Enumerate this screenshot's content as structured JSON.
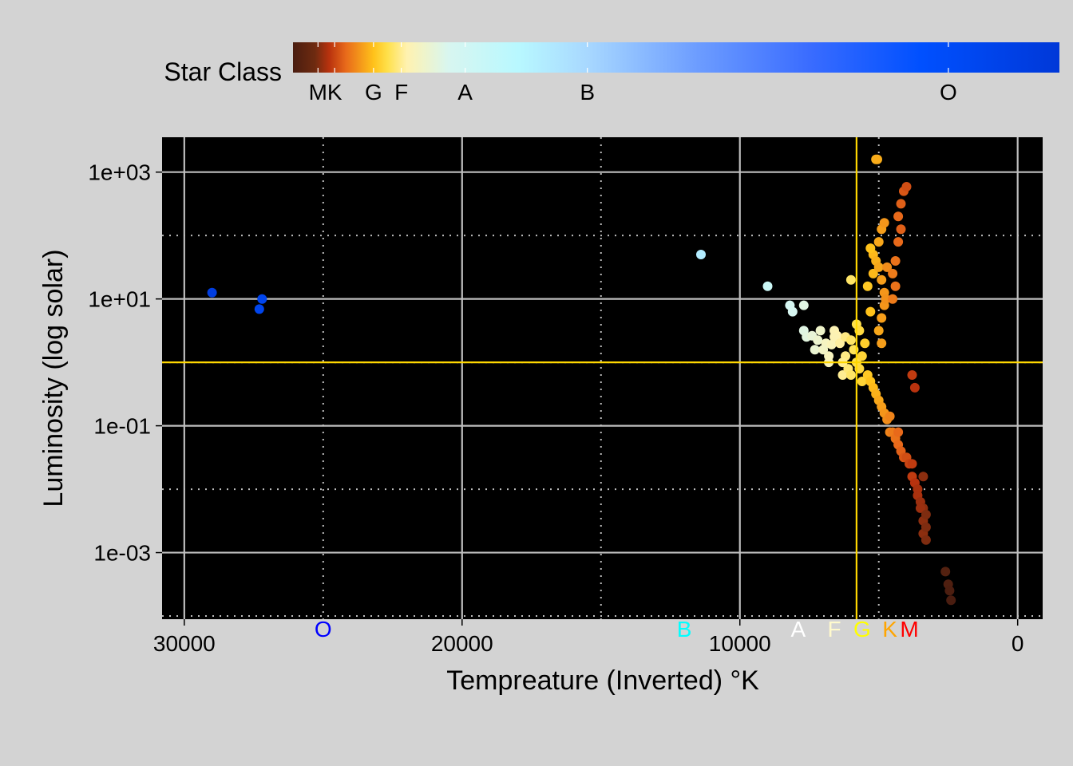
{
  "chart_data": {
    "type": "scatter",
    "title": "",
    "xlabel": "Tempreature (Inverted) °K",
    "ylabel": "Luminosity (log solar)",
    "x_axis": {
      "inverted": true,
      "range": [
        30800,
        -900
      ],
      "ticks": [
        30000,
        20000,
        10000,
        0
      ],
      "tick_labels": [
        "30000",
        "20000",
        "10000",
        "0"
      ]
    },
    "y_axis": {
      "log": true,
      "range_log10": [
        -4.05,
        3.55
      ],
      "ticks_log10": [
        3,
        1,
        -1,
        -3
      ],
      "tick_labels": [
        "1e+03",
        "1e+01",
        "1e-01",
        "1e-03"
      ]
    },
    "grid": true,
    "class_boundaries_x": [
      25000,
      15000,
      5000
    ],
    "class_boundaries_y_log10": [
      2,
      0,
      -2,
      -4
    ],
    "sun_reference": {
      "x": 5800,
      "y": 1,
      "color": "#ffd700"
    },
    "legend": {
      "title": "Star Class",
      "placement": "top",
      "colorbar_range": [
        2400,
        30000
      ],
      "gradient": [
        {
          "t": 2400,
          "color": "#4a1d10"
        },
        {
          "t": 3200,
          "color": "#6f2b10"
        },
        {
          "t": 3700,
          "color": "#b8320e"
        },
        {
          "t": 4300,
          "color": "#e8691a"
        },
        {
          "t": 5300,
          "color": "#ffc21a"
        },
        {
          "t": 5800,
          "color": "#ffe04a"
        },
        {
          "t": 6500,
          "color": "#fff2b0"
        },
        {
          "t": 8000,
          "color": "#d8f6f0"
        },
        {
          "t": 10500,
          "color": "#b8f8ff"
        },
        {
          "t": 13000,
          "color": "#a8d8ff"
        },
        {
          "t": 17000,
          "color": "#6c9cff"
        },
        {
          "t": 21000,
          "color": "#3a6cff"
        },
        {
          "t": 25000,
          "color": "#0050ff"
        },
        {
          "t": 30000,
          "color": "#0038d8"
        }
      ],
      "ticks": [
        {
          "label": "M",
          "t": 3300
        },
        {
          "label": "K",
          "t": 3900
        },
        {
          "label": "G",
          "t": 5300
        },
        {
          "label": "F",
          "t": 6300
        },
        {
          "label": "A",
          "t": 8600
        },
        {
          "label": "B",
          "t": 13000
        },
        {
          "label": "O",
          "t": 26000
        }
      ]
    },
    "class_labels": [
      {
        "label": "O",
        "x": 25000,
        "color": "#0000ff"
      },
      {
        "label": "B",
        "x": 12000,
        "color": "#00ffff"
      },
      {
        "label": "A",
        "x": 7900,
        "color": "#ffffff"
      },
      {
        "label": "F",
        "x": 6600,
        "color": "#fffacd"
      },
      {
        "label": "G",
        "x": 5600,
        "color": "#ffff00"
      },
      {
        "label": "K",
        "x": 4600,
        "color": "#ffa500"
      },
      {
        "label": "M",
        "x": 3900,
        "color": "#ff0000"
      }
    ],
    "series": [
      {
        "points": [
          [
            29000,
            1.1
          ],
          [
            27300,
            0.84
          ],
          [
            27200,
            1.0
          ],
          [
            11400,
            1.7
          ],
          [
            9000,
            1.2
          ],
          [
            8200,
            0.9
          ],
          [
            8100,
            0.8
          ],
          [
            7700,
            0.9
          ],
          [
            7700,
            0.5
          ],
          [
            7600,
            0.4
          ],
          [
            7400,
            0.42
          ],
          [
            7200,
            0.35
          ],
          [
            7300,
            0.2
          ],
          [
            7100,
            0.5
          ],
          [
            6900,
            0.3
          ],
          [
            6800,
            0.1
          ],
          [
            6700,
            0.28
          ],
          [
            6600,
            0.5
          ],
          [
            6500,
            0.42
          ],
          [
            6300,
            -0.2
          ],
          [
            6000,
            1.3
          ],
          [
            7000,
            0.2
          ],
          [
            6800,
            0.0
          ],
          [
            6600,
            0.4
          ],
          [
            6400,
            0.3
          ],
          [
            6200,
            0.1
          ],
          [
            6200,
            0.4
          ],
          [
            6000,
            0.35
          ],
          [
            5800,
            0.6
          ],
          [
            5700,
            0.5
          ],
          [
            6300,
            0.0
          ],
          [
            6100,
            -0.1
          ],
          [
            6000,
            -0.2
          ],
          [
            5900,
            0.2
          ],
          [
            5800,
            0.0
          ],
          [
            5700,
            -0.1
          ],
          [
            5600,
            -0.3
          ],
          [
            5600,
            0.1
          ],
          [
            5500,
            0.3
          ],
          [
            5400,
            -0.2
          ],
          [
            5300,
            -0.3
          ],
          [
            5200,
            1.7
          ],
          [
            5300,
            1.8
          ],
          [
            5400,
            1.2
          ],
          [
            5200,
            1.4
          ],
          [
            5300,
            0.8
          ],
          [
            5100,
            3.2
          ],
          [
            5050,
            3.2
          ],
          [
            5100,
            1.6
          ],
          [
            5000,
            1.9
          ],
          [
            4900,
            2.1
          ],
          [
            4800,
            2.2
          ],
          [
            5000,
            1.5
          ],
          [
            4900,
            1.3
          ],
          [
            4800,
            0.9
          ],
          [
            4900,
            0.7
          ],
          [
            4800,
            1.1
          ],
          [
            4700,
            1.5
          ],
          [
            4750,
            1.0
          ],
          [
            5000,
            0.5
          ],
          [
            4900,
            0.3
          ],
          [
            5200,
            -0.4
          ],
          [
            5100,
            -0.5
          ],
          [
            5000,
            -0.6
          ],
          [
            4900,
            -0.7
          ],
          [
            4800,
            -0.8
          ],
          [
            4700,
            -0.9
          ],
          [
            4600,
            -0.85
          ],
          [
            4600,
            -1.1
          ],
          [
            4500,
            -1.1
          ],
          [
            4400,
            -1.2
          ],
          [
            4300,
            -1.3
          ],
          [
            4300,
            -1.1
          ],
          [
            4200,
            -1.4
          ],
          [
            4100,
            -1.5
          ],
          [
            4000,
            -1.5
          ],
          [
            3900,
            -1.6
          ],
          [
            3800,
            -1.6
          ],
          [
            3800,
            -1.8
          ],
          [
            3700,
            -1.9
          ],
          [
            3600,
            -2.0
          ],
          [
            3600,
            -2.1
          ],
          [
            3500,
            -2.2
          ],
          [
            3400,
            -2.3
          ],
          [
            3500,
            -2.3
          ],
          [
            3400,
            -2.5
          ],
          [
            3300,
            -2.4
          ],
          [
            3400,
            -2.7
          ],
          [
            3300,
            -2.6
          ],
          [
            3300,
            -2.8
          ],
          [
            3400,
            -1.8
          ],
          [
            3800,
            -0.2
          ],
          [
            3700,
            -0.4
          ],
          [
            4100,
            2.7
          ],
          [
            4000,
            2.77
          ],
          [
            4200,
            2.5
          ],
          [
            4300,
            2.3
          ],
          [
            4200,
            2.1
          ],
          [
            4300,
            1.9
          ],
          [
            4400,
            1.6
          ],
          [
            4500,
            1.4
          ],
          [
            4500,
            1.0
          ],
          [
            4400,
            1.2
          ],
          [
            2600,
            -3.3
          ],
          [
            2500,
            -3.5
          ],
          [
            2450,
            -3.6
          ],
          [
            2400,
            -3.75
          ]
        ]
      }
    ]
  }
}
